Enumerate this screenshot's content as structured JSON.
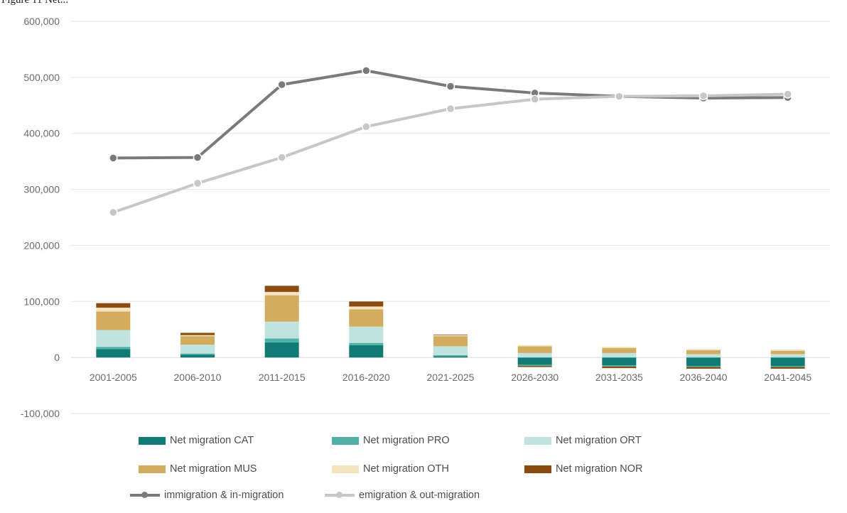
{
  "caption": "Figure 11 Net...",
  "chart_data": {
    "type": "bar",
    "categories": [
      "2001-2005",
      "2006-2010",
      "2011-2015",
      "2016-2020",
      "2021-2025",
      "2026-2030",
      "2031-2035",
      "2036-2040",
      "2041-2045"
    ],
    "ylim": [
      -100000,
      600000
    ],
    "yticks": [
      -100000,
      0,
      100000,
      200000,
      300000,
      400000,
      500000,
      600000
    ],
    "ytick_labels": [
      "-100,000",
      "0",
      "100,000",
      "200,000",
      "300,000",
      "400,000",
      "500,000",
      "600,000"
    ],
    "grid": true,
    "legend_position": "bottom",
    "series": [
      {
        "name": "Net migration CAT",
        "type": "bar",
        "color": "#0f7b74",
        "values": [
          15000,
          5000,
          27000,
          22000,
          2000,
          -13000,
          -14000,
          -15000,
          -15000
        ]
      },
      {
        "name": "Net migration PRO",
        "type": "bar",
        "color": "#4fb0a5",
        "values": [
          4000,
          2000,
          7000,
          4000,
          2000,
          -2000,
          -2000,
          -2000,
          -2000
        ]
      },
      {
        "name": "Net migration ORT",
        "type": "bar",
        "color": "#bfe3df",
        "values": [
          30000,
          16000,
          30000,
          29000,
          16000,
          8000,
          8000,
          6000,
          6000
        ]
      },
      {
        "name": "Net migration MUS",
        "type": "bar",
        "color": "#d4ac60",
        "values": [
          33000,
          15000,
          47000,
          31000,
          18000,
          12000,
          9000,
          7000,
          6000
        ]
      },
      {
        "name": "Net migration OTH",
        "type": "bar",
        "color": "#f3e3be",
        "values": [
          7000,
          2000,
          6000,
          5000,
          2000,
          2000,
          2000,
          2000,
          2000
        ]
      },
      {
        "name": "Net migration NOR",
        "type": "bar",
        "color": "#8b4c11",
        "values": [
          8000,
          4000,
          11000,
          9000,
          1000,
          -2000,
          -3000,
          -3000,
          -3000
        ]
      },
      {
        "name": "immigration & in-migration",
        "type": "line",
        "color": "#7a7a7a",
        "values": [
          356000,
          357000,
          487000,
          512000,
          484000,
          472000,
          466000,
          463000,
          464000
        ]
      },
      {
        "name": "emigration & out-migration",
        "type": "line",
        "color": "#c7c7c7",
        "values": [
          259000,
          311000,
          357000,
          412000,
          444000,
          461000,
          466000,
          467000,
          470000
        ]
      }
    ]
  }
}
